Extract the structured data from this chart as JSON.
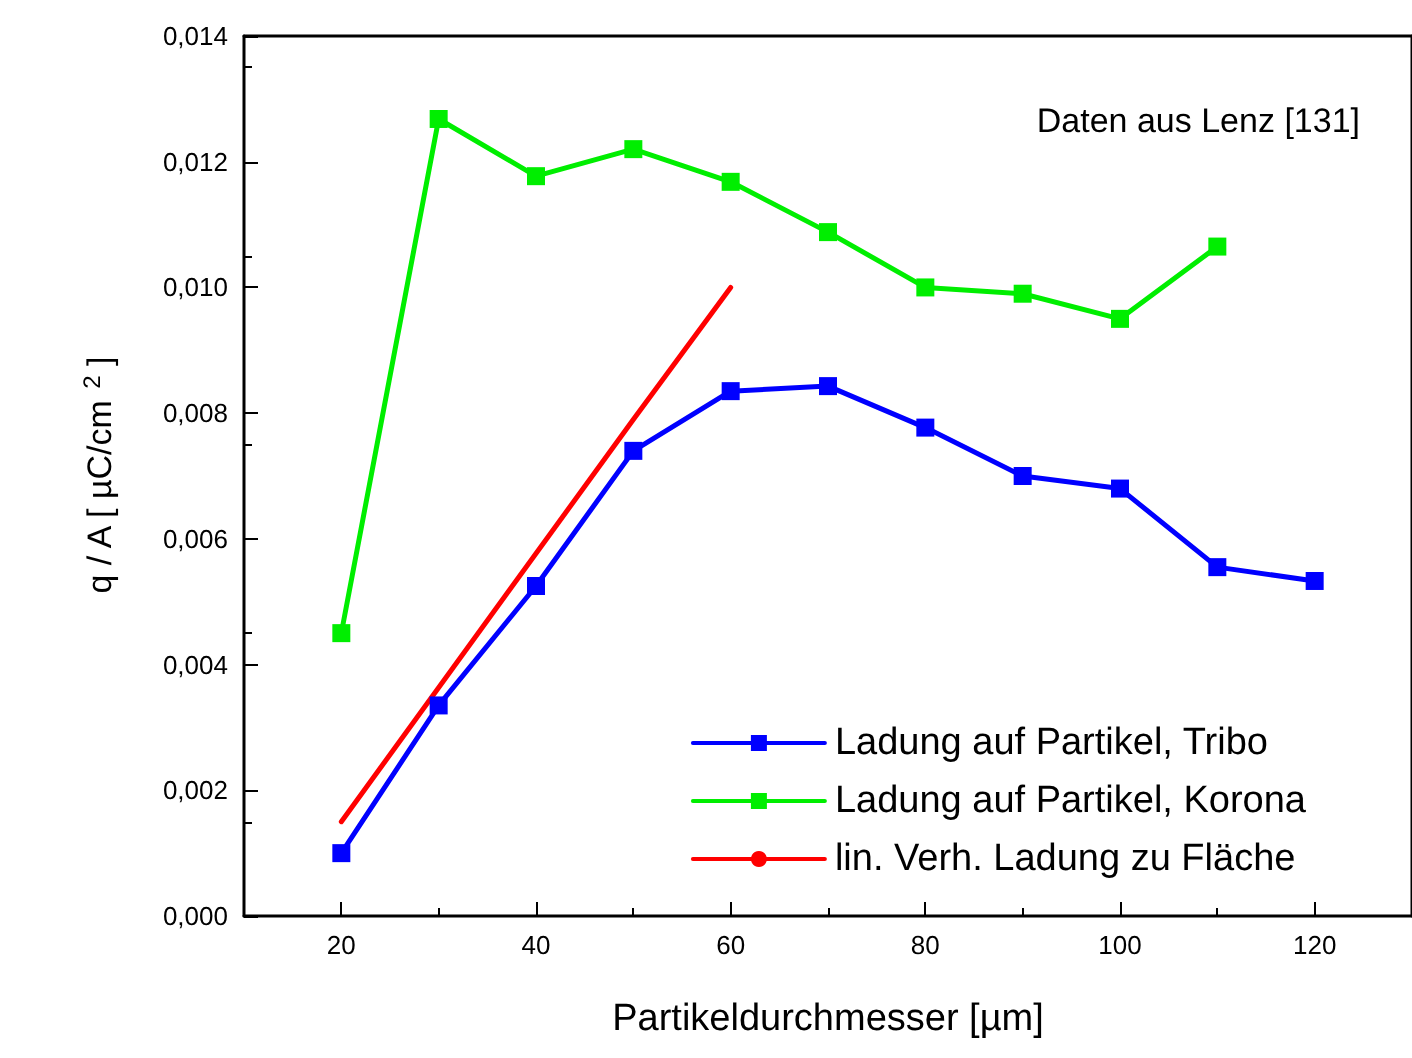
{
  "chart_data": {
    "type": "line",
    "xlabel": "Partikeldurchmesser [µm]",
    "ylabel": "q / A [ µC/cm $^{2}$ ]",
    "annotations": [
      "Daten aus Lenz [131]"
    ],
    "xlim": [
      10,
      130
    ],
    "xticks": [
      20,
      40,
      60,
      80,
      100,
      120
    ],
    "ylim": [
      0,
      0.014
    ],
    "yticks": [
      {
        "value": 0,
        "label": "0,000"
      },
      {
        "value": 0.002,
        "label": "0,002"
      },
      {
        "value": 0.004,
        "label": "0,004"
      },
      {
        "value": 0.006,
        "label": "0,006"
      },
      {
        "value": 0.008,
        "label": "0,008"
      },
      {
        "value": 0.01,
        "label": "0,010"
      },
      {
        "value": 0.012,
        "label": "0,012"
      },
      {
        "value": 0.014,
        "label": "0,014"
      }
    ],
    "grid": false,
    "legend": "bottom right",
    "marker": "square",
    "line_style": "solid",
    "series": [
      {
        "name": "Ladung auf Partikel, Tribo",
        "color": "#0000ff",
        "x": [
          20,
          30,
          40,
          50,
          60,
          70,
          80,
          90,
          100,
          110,
          120
        ],
        "values": [
          0.001,
          0.00335,
          0.00525,
          0.0074,
          0.00835,
          0.00843,
          0.00777,
          0.007,
          0.0068,
          0.00555,
          0.00533
        ]
      },
      {
        "name": "Ladung auf Partikel, Korona",
        "color": "#00ee00",
        "x": [
          20,
          30,
          40,
          50,
          60,
          70,
          80,
          90,
          100,
          110
        ],
        "values": [
          0.0045,
          0.01268,
          0.01177,
          0.0122,
          0.01168,
          0.01088,
          0.01,
          0.0099,
          0.0095,
          0.01065
        ]
      },
      {
        "name": "lin. Verh. Ladung zu Fläche",
        "color": "#ff0000",
        "marker": "none",
        "x": [
          20,
          50,
          60
        ],
        "values": [
          0.0015,
          0.0079,
          0.01
        ]
      }
    ]
  }
}
